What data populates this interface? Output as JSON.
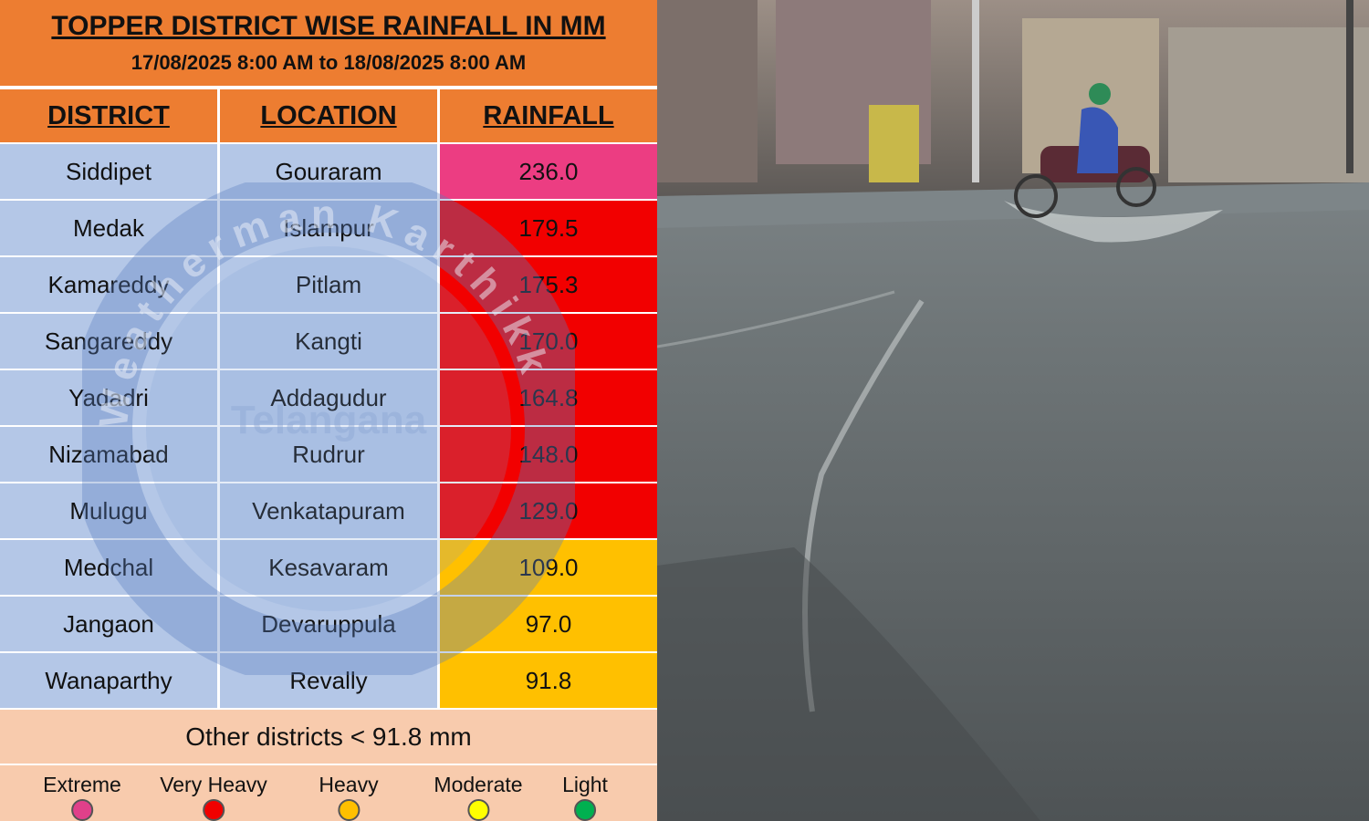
{
  "header": {
    "title": "TOPPER DISTRICT WISE RAINFALL IN MM",
    "subtitle": "17/08/2025 8:00 AM to 18/08/2025 8:00 AM"
  },
  "table": {
    "headers": [
      "DISTRICT",
      "LOCATION",
      "RAINFALL"
    ],
    "rows": [
      {
        "cells": [
          "Siddipet",
          "Gouraram",
          "236.0"
        ],
        "color": "#ec3d82"
      },
      {
        "cells": [
          "Medak",
          "Islampur",
          "179.5"
        ],
        "color": "#f20000"
      },
      {
        "cells": [
          "Kamareddy",
          "Pitlam",
          "175.3"
        ],
        "color": "#f20000"
      },
      {
        "cells": [
          "Sangareddy",
          "Kangti",
          "170.0"
        ],
        "color": "#f20000"
      },
      {
        "cells": [
          "Yadadri",
          "Addagudur",
          "164.8"
        ],
        "color": "#f20000"
      },
      {
        "cells": [
          "Nizamabad",
          "Rudrur",
          "148.0"
        ],
        "color": "#f20000"
      },
      {
        "cells": [
          "Mulugu",
          "Venkatapuram",
          "129.0"
        ],
        "color": "#f20000"
      },
      {
        "cells": [
          "Medchal",
          "Kesavaram",
          "109.0"
        ],
        "color": "#ffc000"
      },
      {
        "cells": [
          "Jangaon",
          "Devaruppula",
          "97.0"
        ],
        "color": "#ffc000"
      },
      {
        "cells": [
          "Wanaparthy",
          "Revally",
          "91.8"
        ],
        "color": "#ffc000"
      }
    ],
    "note": "Other districts < 91.8 mm"
  },
  "legend": [
    {
      "label": "Extreme",
      "color": "#e0408a"
    },
    {
      "label": "Very Heavy",
      "color": "#f00000"
    },
    {
      "label": "Heavy",
      "color": "#ffc000"
    },
    {
      "label": "Moderate",
      "color": "#ffff00"
    },
    {
      "label": "Light",
      "color": "#00b050"
    }
  ],
  "watermark": {
    "name": "Weatherman Karthikk",
    "region": "Telangana"
  }
}
